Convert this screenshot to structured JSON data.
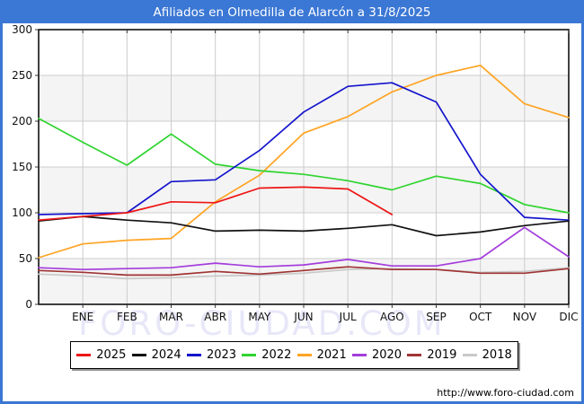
{
  "titlebar": {
    "title": "Afiliados en Olmedilla de Alarcón a 31/8/2025"
  },
  "watermark": {
    "text": "FORO-CIUDAD.COM"
  },
  "footer": {
    "url": "http://www.foro-ciudad.com"
  },
  "colors": {
    "titlebar_bg": "#3b77d4",
    "frame_border": "#3b77d4",
    "plot_border": "#000000",
    "gridline": "#cccccc",
    "band_shade": "#f4f4f4",
    "axis_text": "#111111"
  },
  "chart_data": {
    "type": "line",
    "title": "Afiliados en Olmedilla de Alarcón a 31/8/2025",
    "xlabel": "",
    "ylabel": "",
    "ylim": [
      0,
      300
    ],
    "ytick_step": 50,
    "grid": true,
    "legend_position": "bottom",
    "x_labels": [
      "ENE",
      "FEB",
      "MAR",
      "ABR",
      "MAY",
      "JUN",
      "JUL",
      "AGO",
      "SEP",
      "OCT",
      "NOV",
      "DIC"
    ],
    "layout_hint": "13 points per full series: first point sits on the left axis edge (unlabeled), the 12 month labels sit on the following gridlines; 2025 series ends at AGO",
    "series": [
      {
        "name": "2025",
        "color": "#ee1515",
        "values": [
          92,
          96,
          100,
          112,
          111,
          127,
          128,
          126,
          98
        ]
      },
      {
        "name": "2024",
        "color": "#111111",
        "values": [
          91,
          96,
          92,
          89,
          80,
          81,
          80,
          83,
          87,
          75,
          79,
          86,
          91
        ]
      },
      {
        "name": "2023",
        "color": "#1414cc",
        "values": [
          98,
          99,
          100,
          134,
          136,
          168,
          210,
          238,
          242,
          221,
          142,
          95,
          92
        ]
      },
      {
        "name": "2022",
        "color": "#2fd42f",
        "values": [
          203,
          177,
          152,
          186,
          153,
          146,
          142,
          135,
          125,
          140,
          132,
          109,
          100
        ]
      },
      {
        "name": "2021",
        "color": "#ffa423",
        "values": [
          51,
          66,
          70,
          72,
          112,
          141,
          187,
          205,
          232,
          250,
          261,
          219,
          204
        ]
      },
      {
        "name": "2020",
        "color": "#a43ddb",
        "values": [
          40,
          38,
          39,
          40,
          45,
          41,
          43,
          49,
          42,
          42,
          50,
          84,
          52
        ]
      },
      {
        "name": "2019",
        "color": "#a03434",
        "values": [
          37,
          35,
          32,
          32,
          36,
          33,
          37,
          41,
          38,
          38,
          34,
          34,
          39
        ]
      },
      {
        "name": "2018",
        "color": "#c9c9c9",
        "values": [
          33,
          31,
          28,
          29,
          31,
          32,
          34,
          38,
          39,
          38,
          35,
          36,
          40
        ]
      }
    ]
  }
}
